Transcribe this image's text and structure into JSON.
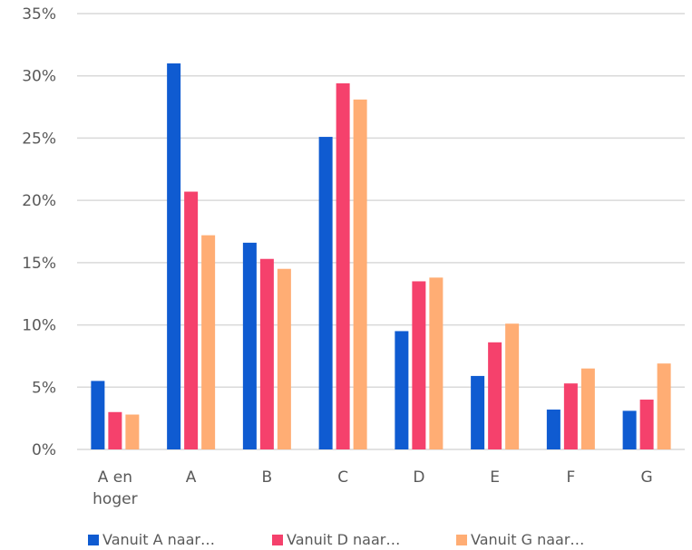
{
  "chart_data": {
    "type": "bar",
    "title": "",
    "xlabel": "",
    "ylabel": "",
    "ylim": [
      0,
      35
    ],
    "y_ticks": [
      "0%",
      "5%",
      "10%",
      "15%",
      "20%",
      "25%",
      "30%",
      "35%"
    ],
    "y_tick_values": [
      0,
      5,
      10,
      15,
      20,
      25,
      30,
      35
    ],
    "categories": [
      [
        "A en",
        "hoger"
      ],
      [
        "A"
      ],
      [
        "B"
      ],
      [
        "C"
      ],
      [
        "D"
      ],
      [
        "E"
      ],
      [
        "F"
      ],
      [
        "G"
      ]
    ],
    "series": [
      {
        "name": "Vanuit A naar...",
        "legend_label": "Vanuit A naar…",
        "color": "#0f5bd1",
        "values": [
          5.5,
          31.0,
          16.6,
          25.1,
          9.5,
          5.9,
          3.2,
          3.1
        ]
      },
      {
        "name": "Vanuit D naar...",
        "legend_label": "Vanuit D naar…",
        "color": "#f5416c",
        "values": [
          3.0,
          20.7,
          15.3,
          29.4,
          13.5,
          8.6,
          5.3,
          4.0
        ]
      },
      {
        "name": "Vanuit G naar...",
        "legend_label": "Vanuit G naar…",
        "color": "#ffad74",
        "values": [
          2.8,
          17.2,
          14.5,
          28.1,
          13.8,
          10.1,
          6.5,
          6.9
        ]
      }
    ],
    "grid": true,
    "legend_position": "bottom-left"
  }
}
